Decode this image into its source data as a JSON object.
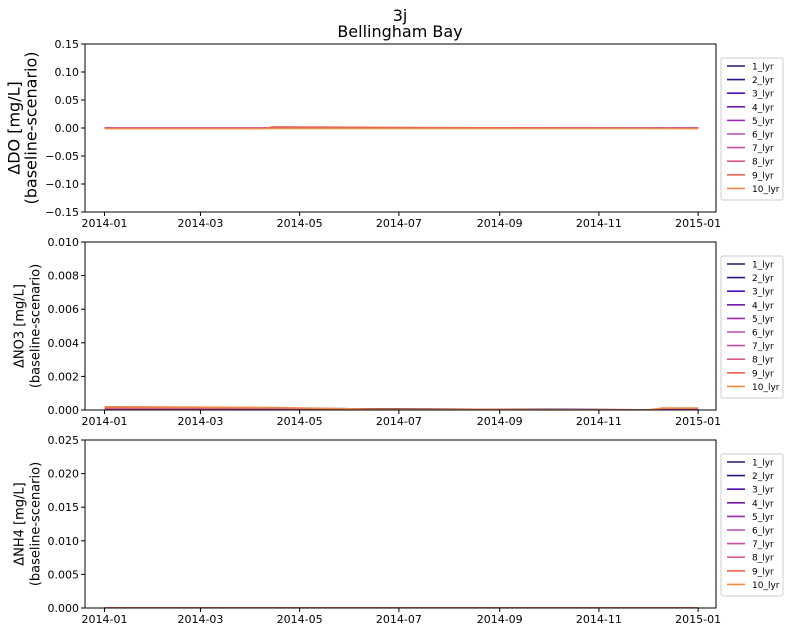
{
  "figure": {
    "title_line1": "3j",
    "title_line2": "Bellingham Bay"
  },
  "colors": {
    "series": [
      "#1c1b73",
      "#2a1580",
      "#4e13b0",
      "#7a18a8",
      "#9a2ab0",
      "#b34ab5",
      "#c8529a",
      "#d85a88",
      "#e8654f",
      "#f08a4a"
    ]
  },
  "chart_data": [
    {
      "type": "line",
      "panel": "do",
      "ylabel_line1": "ΔDO [mg/L]",
      "ylabel_line2": "(baseline-scenario)",
      "xlim": [
        "2013-12-20",
        "2015-01-12"
      ],
      "ylim": [
        -0.15,
        0.15
      ],
      "yticks": [
        "0.15",
        "0.10",
        "0.05",
        "0.00",
        "−0.05",
        "−0.10",
        "−0.15"
      ],
      "ytick_values": [
        0.15,
        0.1,
        0.05,
        0.0,
        -0.05,
        -0.1,
        -0.15
      ],
      "xticks": [
        "2014-01",
        "2014-03",
        "2014-05",
        "2014-07",
        "2014-09",
        "2014-11",
        "2015-01"
      ],
      "xtick_values": [
        "2014-01-01",
        "2014-03-01",
        "2014-05-01",
        "2014-07-01",
        "2014-09-01",
        "2014-11-01",
        "2015-01-01"
      ],
      "legend": "right-outside",
      "grid": false,
      "series": [
        {
          "name": "1_lyr",
          "x": [
            "2014-01-01",
            "2015-01-01"
          ],
          "y": [
            0.0,
            0.0
          ]
        },
        {
          "name": "2_lyr",
          "x": [
            "2014-01-01",
            "2015-01-01"
          ],
          "y": [
            0.0,
            0.0
          ]
        },
        {
          "name": "3_lyr",
          "x": [
            "2014-01-01",
            "2015-01-01"
          ],
          "y": [
            0.0,
            0.0
          ]
        },
        {
          "name": "4_lyr",
          "x": [
            "2014-01-01",
            "2015-01-01"
          ],
          "y": [
            0.0,
            0.0
          ]
        },
        {
          "name": "5_lyr",
          "x": [
            "2014-01-01",
            "2015-01-01"
          ],
          "y": [
            0.0,
            0.0
          ]
        },
        {
          "name": "6_lyr",
          "x": [
            "2014-01-01",
            "2015-01-01"
          ],
          "y": [
            0.0,
            0.0
          ]
        },
        {
          "name": "7_lyr",
          "x": [
            "2014-01-01",
            "2015-01-01"
          ],
          "y": [
            0.0,
            0.0
          ]
        },
        {
          "name": "8_lyr",
          "x": [
            "2014-01-01",
            "2015-01-01"
          ],
          "y": [
            0.0,
            0.0
          ]
        },
        {
          "name": "9_lyr",
          "x": [
            "2014-01-01",
            "2014-04-10",
            "2014-04-14",
            "2015-01-01"
          ],
          "y": [
            -0.001,
            -0.001,
            0.002,
            -0.001
          ]
        },
        {
          "name": "10_lyr",
          "x": [
            "2014-01-01",
            "2015-01-01"
          ],
          "y": [
            -0.001,
            -0.001
          ]
        }
      ]
    },
    {
      "type": "line",
      "panel": "no3",
      "ylabel_line1": "ΔNO3 [mg/L]",
      "ylabel_line2": "(baseline-scenario)",
      "xlim": [
        "2013-12-20",
        "2015-01-12"
      ],
      "ylim": [
        0.0,
        0.01
      ],
      "yticks": [
        "0.010",
        "0.008",
        "0.006",
        "0.004",
        "0.002",
        "0.000"
      ],
      "ytick_values": [
        0.01,
        0.008,
        0.006,
        0.004,
        0.002,
        0.0
      ],
      "xticks": [
        "2014-01",
        "2014-03",
        "2014-05",
        "2014-07",
        "2014-09",
        "2014-11",
        "2015-01"
      ],
      "xtick_values": [
        "2014-01-01",
        "2014-03-01",
        "2014-05-01",
        "2014-07-01",
        "2014-09-01",
        "2014-11-01",
        "2015-01-01"
      ],
      "legend": "right-outside",
      "grid": false,
      "series": [
        {
          "name": "1_lyr",
          "x": [
            "2014-01-01",
            "2014-03-25",
            "2014-04-10",
            "2015-01-01"
          ],
          "y": [
            0.0,
            0.0,
            0.0001,
            0.0
          ]
        },
        {
          "name": "2_lyr",
          "x": [
            "2014-01-01",
            "2014-03-25",
            "2014-04-10",
            "2015-01-01"
          ],
          "y": [
            0.0,
            0.0,
            0.0001,
            0.0
          ]
        },
        {
          "name": "3_lyr",
          "x": [
            "2014-01-01",
            "2015-01-01"
          ],
          "y": [
            0.0,
            0.0
          ]
        },
        {
          "name": "4_lyr",
          "x": [
            "2014-01-01",
            "2015-01-01"
          ],
          "y": [
            0.0,
            0.0
          ]
        },
        {
          "name": "5_lyr",
          "x": [
            "2014-01-01",
            "2015-01-01"
          ],
          "y": [
            0.0,
            0.0
          ]
        },
        {
          "name": "6_lyr",
          "x": [
            "2014-01-01",
            "2015-01-01"
          ],
          "y": [
            0.0,
            0.0
          ]
        },
        {
          "name": "7_lyr",
          "x": [
            "2014-01-01",
            "2015-01-01"
          ],
          "y": [
            0.0,
            0.0
          ]
        },
        {
          "name": "8_lyr",
          "x": [
            "2014-01-01",
            "2014-04-15",
            "2014-06-10",
            "2014-12-01",
            "2014-12-10",
            "2015-01-01"
          ],
          "y": [
            0.0001,
            0.0001,
            5e-05,
            0.0,
            0.0001,
            0.0001
          ]
        },
        {
          "name": "9_lyr",
          "x": [
            "2014-01-01",
            "2014-04-15",
            "2014-06-10",
            "2014-12-01",
            "2014-12-10",
            "2015-01-01"
          ],
          "y": [
            0.00015,
            0.00012,
            5e-05,
            0.0,
            0.0001,
            0.0001
          ]
        },
        {
          "name": "10_lyr",
          "x": [
            "2014-01-01",
            "2014-04-15",
            "2014-06-10",
            "2014-12-01",
            "2014-12-10",
            "2015-01-01"
          ],
          "y": [
            0.0002,
            0.00015,
            6e-05,
            0.0,
            0.00012,
            0.00012
          ]
        }
      ]
    },
    {
      "type": "line",
      "panel": "nh4",
      "ylabel_line1": "ΔNH4 [mg/L]",
      "ylabel_line2": "(baseline-scenario)",
      "xlim": [
        "2013-12-20",
        "2015-01-12"
      ],
      "ylim": [
        0.0,
        0.025
      ],
      "yticks": [
        "0.025",
        "0.020",
        "0.015",
        "0.010",
        "0.005",
        "0.000"
      ],
      "ytick_values": [
        0.025,
        0.02,
        0.015,
        0.01,
        0.005,
        0.0
      ],
      "xticks": [
        "2014-01",
        "2014-03",
        "2014-05",
        "2014-07",
        "2014-09",
        "2014-11",
        "2015-01"
      ],
      "xtick_values": [
        "2014-01-01",
        "2014-03-01",
        "2014-05-01",
        "2014-07-01",
        "2014-09-01",
        "2014-11-01",
        "2015-01-01"
      ],
      "legend": "right-outside",
      "grid": false,
      "series": [
        {
          "name": "1_lyr",
          "x": [
            "2014-01-01",
            "2015-01-01"
          ],
          "y": [
            0.0,
            0.0
          ]
        },
        {
          "name": "2_lyr",
          "x": [
            "2014-01-01",
            "2015-01-01"
          ],
          "y": [
            0.0,
            0.0
          ]
        },
        {
          "name": "3_lyr",
          "x": [
            "2014-01-01",
            "2015-01-01"
          ],
          "y": [
            0.0,
            0.0
          ]
        },
        {
          "name": "4_lyr",
          "x": [
            "2014-01-01",
            "2015-01-01"
          ],
          "y": [
            0.0,
            0.0
          ]
        },
        {
          "name": "5_lyr",
          "x": [
            "2014-01-01",
            "2015-01-01"
          ],
          "y": [
            0.0,
            0.0
          ]
        },
        {
          "name": "6_lyr",
          "x": [
            "2014-01-01",
            "2015-01-01"
          ],
          "y": [
            0.0,
            0.0
          ]
        },
        {
          "name": "7_lyr",
          "x": [
            "2014-01-01",
            "2015-01-01"
          ],
          "y": [
            0.0,
            0.0
          ]
        },
        {
          "name": "8_lyr",
          "x": [
            "2014-01-01",
            "2015-01-01"
          ],
          "y": [
            0.0,
            0.0
          ]
        },
        {
          "name": "9_lyr",
          "x": [
            "2014-01-01",
            "2015-01-01"
          ],
          "y": [
            0.0,
            0.0
          ]
        },
        {
          "name": "10_lyr",
          "x": [
            "2014-01-01",
            "2015-01-01"
          ],
          "y": [
            0.0,
            0.0
          ]
        }
      ]
    }
  ]
}
